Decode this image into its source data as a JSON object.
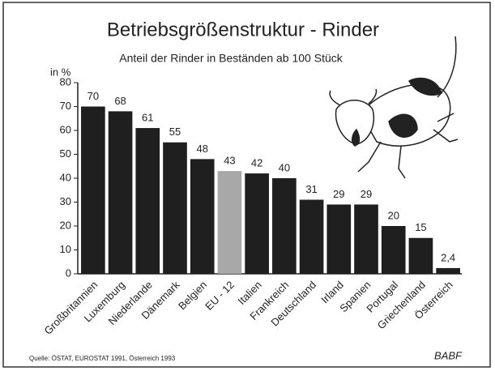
{
  "chart_data": {
    "type": "bar",
    "title": "Betriebsgrößenstruktur - Rinder",
    "subtitle": "Anteil der Rinder in Beständen ab 100 Stück",
    "y_label": "in %",
    "source": "Quelle: ÖSTAT, EUROSTAT 1991, Österreich 1993",
    "credit": "BABF",
    "categories": [
      "Großbritannien",
      "Luxemburg",
      "Niederlande",
      "Dänemark",
      "Belgien",
      "EU - 12",
      "Italien",
      "Frankreich",
      "Deutschland",
      "Irland",
      "Spanien",
      "Portugal",
      "Griechenland",
      "Österreich"
    ],
    "values": [
      70,
      68,
      61,
      55,
      48,
      43,
      42,
      40,
      31,
      29,
      29,
      20,
      15,
      2.4
    ],
    "value_labels": [
      "70",
      "68",
      "61",
      "55",
      "48",
      "43",
      "42",
      "40",
      "31",
      "29",
      "29",
      "20",
      "15",
      "2,4"
    ],
    "colors": [
      "#1f1f1f",
      "#1f1f1f",
      "#1f1f1f",
      "#1f1f1f",
      "#1f1f1f",
      "#a8a8a8",
      "#1f1f1f",
      "#1f1f1f",
      "#1f1f1f",
      "#1f1f1f",
      "#1f1f1f",
      "#1f1f1f",
      "#1f1f1f",
      "#1f1f1f"
    ],
    "ylim": [
      0,
      80
    ],
    "yticks": [
      0,
      10,
      20,
      30,
      40,
      50,
      60,
      70,
      80
    ],
    "grid": false
  }
}
